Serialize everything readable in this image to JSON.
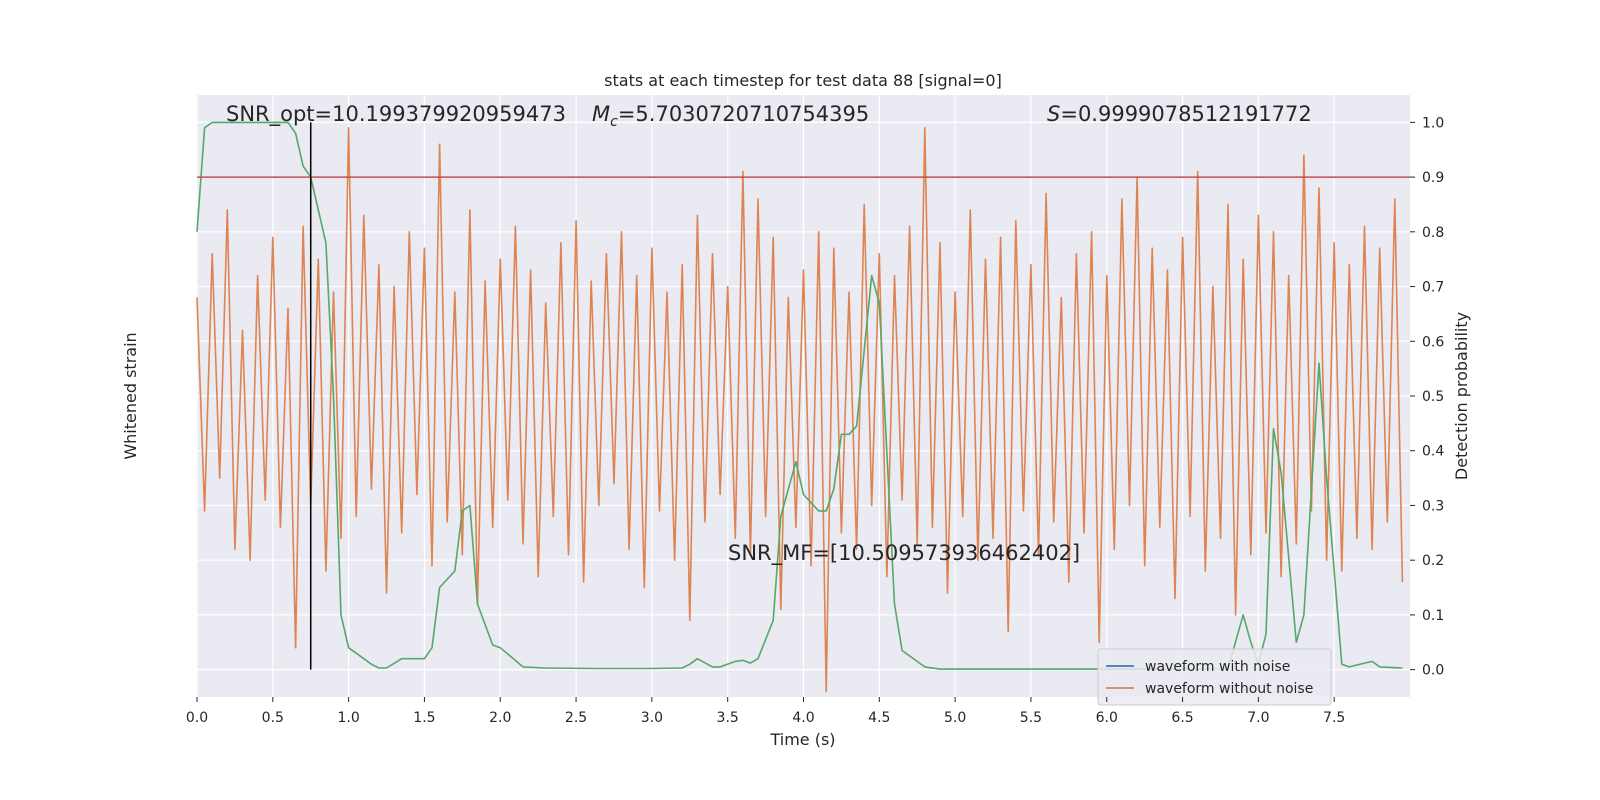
{
  "chart_data": {
    "type": "line",
    "title": "stats at each timestep for test data 88 [signal=0]",
    "xlabel": "Time (s)",
    "ylabel": "Whitened strain",
    "y2label": "Detection probability",
    "xlim": [
      0,
      8.0
    ],
    "ylim": [
      -5.5,
      5.5
    ],
    "y2lim": [
      -0.05,
      1.05
    ],
    "xticks": [
      {
        "value": 0,
        "label": "0.0"
      },
      {
        "value": 0.5,
        "label": "0.5"
      },
      {
        "value": 1,
        "label": "1.0"
      },
      {
        "value": 1.5,
        "label": "1.5"
      },
      {
        "value": 2,
        "label": "2.0"
      },
      {
        "value": 2.5,
        "label": "2.5"
      },
      {
        "value": 3,
        "label": "3.0"
      },
      {
        "value": 3.5,
        "label": "3.5"
      },
      {
        "value": 4,
        "label": "4.0"
      },
      {
        "value": 4.5,
        "label": "4.5"
      },
      {
        "value": 5,
        "label": "5.0"
      },
      {
        "value": 5.5,
        "label": "5.5"
      },
      {
        "value": 6,
        "label": "6.0"
      },
      {
        "value": 6.5,
        "label": "6.5"
      },
      {
        "value": 7,
        "label": "7.0"
      },
      {
        "value": 7.5,
        "label": "7.5"
      }
    ],
    "y2ticks": [
      {
        "value": 0,
        "label": "0.0"
      },
      {
        "value": 0.1,
        "label": "0.1"
      },
      {
        "value": 0.2,
        "label": "0.2"
      },
      {
        "value": 0.3,
        "label": "0.3"
      },
      {
        "value": 0.4,
        "label": "0.4"
      },
      {
        "value": 0.5,
        "label": "0.5"
      },
      {
        "value": 0.6,
        "label": "0.6"
      },
      {
        "value": 0.7,
        "label": "0.7"
      },
      {
        "value": 0.8,
        "label": "0.8"
      },
      {
        "value": 0.9,
        "label": "0.9"
      },
      {
        "value": 1,
        "label": "1.0"
      }
    ],
    "grid": true,
    "legend": "lower right",
    "threshold": {
      "value": 0.9,
      "color": "#c44e52"
    },
    "marker_x": {
      "value": 0.75,
      "color": "#000000"
    },
    "annotations": {
      "snr_opt": "SNR_opt=10.199379920959473",
      "chirp_mass": {
        "symbol": "M",
        "subscript": "c",
        "text": "=5.7030720710754395"
      },
      "overlap": {
        "symbol": "S",
        "text": "=0.9999078512191772"
      },
      "snr_mf": "SNR_MF=[10.509573936462402]"
    },
    "series": [
      {
        "name": "waveform with noise",
        "color": "#4c72b0"
      },
      {
        "name": "waveform without noise",
        "color": "#dd8452",
        "x": [
          0,
          0.05,
          0.1,
          0.15,
          0.2,
          0.25,
          0.3,
          0.35,
          0.4,
          0.45,
          0.5,
          0.55,
          0.6,
          0.65,
          0.7,
          0.75,
          0.8,
          0.85,
          0.9,
          0.95,
          1,
          1.05,
          1.1,
          1.15,
          1.2,
          1.25,
          1.3,
          1.35,
          1.4,
          1.45,
          1.5,
          1.55,
          1.6,
          1.65,
          1.7,
          1.75,
          1.8,
          1.85,
          1.9,
          1.95,
          2,
          2.05,
          2.1,
          2.15,
          2.2,
          2.25,
          2.3,
          2.35,
          2.4,
          2.45,
          2.5,
          2.55,
          2.6,
          2.65,
          2.7,
          2.75,
          2.8,
          2.85,
          2.9,
          2.95,
          3,
          3.05,
          3.1,
          3.15,
          3.2,
          3.25,
          3.3,
          3.35,
          3.4,
          3.45,
          3.5,
          3.55,
          3.6,
          3.65,
          3.7,
          3.75,
          3.8,
          3.85,
          3.9,
          3.95,
          4,
          4.05,
          4.1,
          4.15,
          4.2,
          4.25,
          4.3,
          4.35,
          4.4,
          4.45,
          4.5,
          4.55,
          4.6,
          4.65,
          4.7,
          4.75,
          4.8,
          4.85,
          4.9,
          4.95,
          5,
          5.05,
          5.1,
          5.15,
          5.2,
          5.25,
          5.3,
          5.35,
          5.4,
          5.45,
          5.5,
          5.55,
          5.6,
          5.65,
          5.7,
          5.75,
          5.8,
          5.85,
          5.9,
          5.95,
          6,
          6.05,
          6.1,
          6.15,
          6.2,
          6.25,
          6.3,
          6.35,
          6.4,
          6.45,
          6.5,
          6.55,
          6.6,
          6.65,
          6.7,
          6.75,
          6.8,
          6.85,
          6.9,
          6.95,
          7,
          7.05,
          7.1,
          7.15,
          7.2,
          7.25,
          7.3,
          7.35,
          7.4,
          7.45,
          7.5,
          7.55,
          7.6,
          7.65,
          7.7,
          7.75,
          7.8,
          7.85,
          7.9,
          7.95
        ],
        "values": [
          1.8,
          -2.1,
          2.6,
          -1.5,
          3.4,
          -2.8,
          1.2,
          -3.0,
          2.2,
          -1.9,
          2.9,
          -2.4,
          1.6,
          -4.6,
          3.1,
          -2.0,
          2.5,
          -3.2,
          1.9,
          -2.6,
          4.9,
          -2.2,
          3.3,
          -1.7,
          2.4,
          -3.6,
          2.0,
          -2.5,
          3.0,
          -1.8,
          2.7,
          -3.1,
          4.6,
          -2.3,
          1.9,
          -2.9,
          3.4,
          -3.8,
          2.1,
          -2.4,
          2.5,
          -1.9,
          3.1,
          -2.7,
          2.3,
          -3.3,
          1.7,
          -2.2,
          2.8,
          -2.9,
          3.2,
          -3.4,
          2.1,
          -2.0,
          2.6,
          -1.6,
          3.0,
          -2.8,
          2.2,
          -3.5,
          2.7,
          -2.1,
          1.9,
          -3.0,
          2.4,
          -4.1,
          3.3,
          -2.3,
          2.6,
          -1.8,
          2.0,
          -2.6,
          4.1,
          -2.9,
          3.6,
          -2.2,
          2.9,
          -3.9,
          1.8,
          -2.4,
          2.3,
          -3.1,
          3.0,
          -5.4,
          2.7,
          -2.5,
          1.9,
          -2.8,
          3.5,
          -2.0,
          2.6,
          -3.3,
          2.2,
          -1.9,
          3.1,
          -2.7,
          4.9,
          -2.4,
          2.8,
          -3.6,
          1.9,
          -2.2,
          3.4,
          -3.0,
          2.5,
          -2.6,
          2.9,
          -4.3,
          3.2,
          -2.1,
          2.4,
          -2.9,
          3.7,
          -2.3,
          1.8,
          -3.4,
          2.6,
          -2.5,
          3.0,
          -4.5,
          2.2,
          -2.8,
          3.6,
          -2.0,
          4.0,
          -3.1,
          2.7,
          -2.4,
          2.3,
          -3.7,
          2.9,
          -2.2,
          4.1,
          -3.2,
          2.0,
          -2.6,
          3.5,
          -4.0,
          2.5,
          -2.9,
          3.3,
          -2.5,
          3.0,
          -3.3,
          2.2,
          -2.7,
          4.4,
          -2.1,
          3.8,
          -3.0,
          2.8,
          -3.2,
          2.4,
          -2.6,
          3.1,
          -2.8,
          2.7,
          -2.3,
          3.6,
          -3.4
        ]
      },
      {
        "color": "#55a868",
        "axis": "y2",
        "x": [
          0,
          0.05,
          0.1,
          0.3,
          0.6,
          0.65,
          0.7,
          0.75,
          0.85,
          0.9,
          0.95,
          1.0,
          1.15,
          1.2,
          1.25,
          1.35,
          1.45,
          1.5,
          1.55,
          1.6,
          1.7,
          1.75,
          1.8,
          1.85,
          1.95,
          2.0,
          2.15,
          2.3,
          2.6,
          3.0,
          3.2,
          3.25,
          3.3,
          3.4,
          3.45,
          3.55,
          3.6,
          3.65,
          3.7,
          3.8,
          3.85,
          3.95,
          4.0,
          4.1,
          4.15,
          4.2,
          4.25,
          4.3,
          4.35,
          4.45,
          4.5,
          4.6,
          4.65,
          4.8,
          4.9,
          5.5,
          6.5,
          6.8,
          6.9,
          6.95,
          7.0,
          7.05,
          7.1,
          7.15,
          7.25,
          7.3,
          7.4,
          7.45,
          7.55,
          7.6,
          7.7,
          7.75,
          7.8,
          7.95
        ],
        "values": [
          0.8,
          0.99,
          1.0,
          1.0,
          1.0,
          0.98,
          0.92,
          0.9,
          0.78,
          0.5,
          0.1,
          0.04,
          0.01,
          0.003,
          0.003,
          0.02,
          0.02,
          0.02,
          0.04,
          0.15,
          0.18,
          0.29,
          0.3,
          0.12,
          0.045,
          0.04,
          0.005,
          0.003,
          0.002,
          0.002,
          0.003,
          0.01,
          0.02,
          0.005,
          0.005,
          0.015,
          0.017,
          0.012,
          0.02,
          0.09,
          0.28,
          0.38,
          0.32,
          0.29,
          0.29,
          0.33,
          0.43,
          0.43,
          0.445,
          0.72,
          0.67,
          0.12,
          0.035,
          0.005,
          0.001,
          0.001,
          0.001,
          0.002,
          0.1,
          0.05,
          0.01,
          0.065,
          0.44,
          0.36,
          0.05,
          0.1,
          0.56,
          0.35,
          0.01,
          0.005,
          0.012,
          0.015,
          0.005,
          0.003
        ]
      }
    ]
  }
}
